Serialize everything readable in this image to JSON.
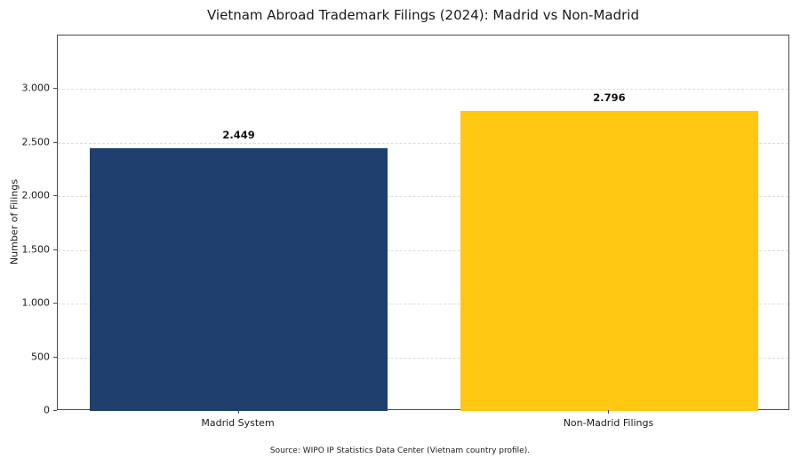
{
  "figure": {
    "title": "Vietnam Abroad Trademark Filings (2024): Madrid vs Non-Madrid",
    "source_note": "Source: WIPO IP Statistics Data Center (Vietnam country profile)."
  },
  "chart_data": {
    "type": "bar",
    "title": "Vietnam Abroad Trademark Filings (2024): Madrid vs Non-Madrid",
    "xlabel": "",
    "ylabel": "Number of Filings",
    "categories": [
      "Madrid System",
      "Non-Madrid Filings"
    ],
    "values": [
      2449,
      2796
    ],
    "value_labels": [
      "2.449",
      "2.796"
    ],
    "bar_colors": [
      "#1f3f6e",
      "#ffc712"
    ],
    "ylim": [
      0,
      3500
    ],
    "yticks": [
      0,
      500,
      1000,
      1500,
      2000,
      2500,
      3000
    ],
    "ytick_labels": [
      "0",
      "500",
      "1.000",
      "1.500",
      "2.000",
      "2.500",
      "3.000"
    ],
    "grid": {
      "axis": "y",
      "style": "dashed",
      "color": "#dcdcdc"
    },
    "legend": "none",
    "frame": "box",
    "source_note": "Source: WIPO IP Statistics Data Center (Vietnam country profile)."
  }
}
